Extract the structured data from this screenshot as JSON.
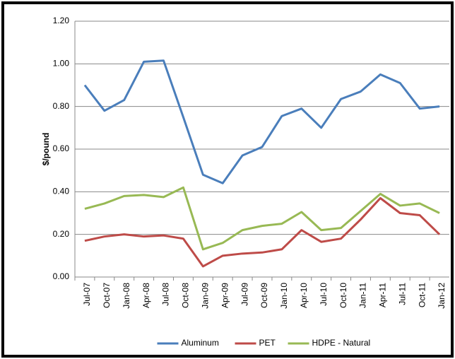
{
  "chart_data": {
    "type": "line",
    "y_label": "$/pound",
    "categories": [
      "Jul-07",
      "Oct-07",
      "Jan-08",
      "Apr-08",
      "Jul-08",
      "Oct-08",
      "Jan-09",
      "Apr-09",
      "Jul-09",
      "Oct-09",
      "Jan-10",
      "Apr-10",
      "Jul-10",
      "Oct-10",
      "Jan-11",
      "Apr-11",
      "Jul-11",
      "Oct-11",
      "Jan-12"
    ],
    "series": [
      {
        "name": "Aluminum",
        "color": "#4a7ebb",
        "values": [
          0.9,
          0.78,
          0.83,
          1.01,
          1.015,
          0.75,
          0.48,
          0.44,
          0.57,
          0.61,
          0.755,
          0.79,
          0.7,
          0.835,
          0.87,
          0.95,
          0.91,
          0.79,
          0.8
        ]
      },
      {
        "name": "PET",
        "color": "#be4b48",
        "values": [
          0.17,
          0.19,
          0.2,
          0.19,
          0.195,
          0.18,
          0.05,
          0.1,
          0.11,
          0.115,
          0.13,
          0.22,
          0.165,
          0.18,
          0.27,
          0.37,
          0.3,
          0.29,
          0.2
        ]
      },
      {
        "name": "HDPE - Natural",
        "color": "#98b954",
        "values": [
          0.32,
          0.345,
          0.38,
          0.385,
          0.375,
          0.42,
          0.13,
          0.16,
          0.22,
          0.24,
          0.25,
          0.305,
          0.22,
          0.23,
          0.31,
          0.39,
          0.335,
          0.345,
          0.3
        ]
      }
    ],
    "ylim": [
      0,
      1.2
    ],
    "yticks": [
      {
        "value": 0,
        "label": "0.00"
      },
      {
        "value": 0.2,
        "label": "0.20"
      },
      {
        "value": 0.4,
        "label": "0.40"
      },
      {
        "value": 0.6,
        "label": "0.60"
      },
      {
        "value": 0.8,
        "label": "0.80"
      },
      {
        "value": 1,
        "label": "1.00"
      },
      {
        "value": 1.2,
        "label": "1.20"
      }
    ],
    "grid": true,
    "legend": "bottom"
  }
}
